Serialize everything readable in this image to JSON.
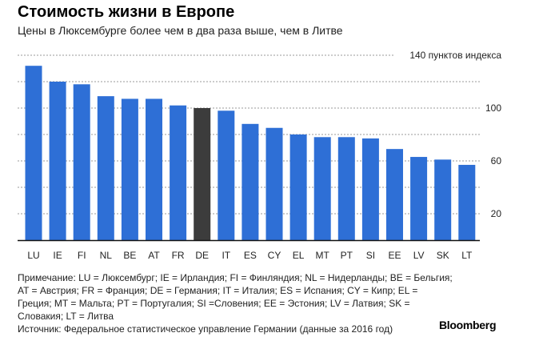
{
  "title": "Стоимость жизни в Европе",
  "subtitle": "Цены в Люксембурге более чем в два раза выше, чем в Литве",
  "chart_data": {
    "type": "bar",
    "title": "Стоимость жизни в Европе",
    "subtitle": "Цены в Люксембурге более чем в два раза выше, чем в Литве",
    "categories": [
      "LU",
      "IE",
      "FI",
      "NL",
      "BE",
      "AT",
      "FR",
      "DE",
      "IT",
      "ES",
      "CY",
      "EL",
      "MT",
      "PT",
      "SI",
      "EE",
      "LV",
      "SK",
      "LT"
    ],
    "values": [
      132,
      120,
      118,
      109,
      107,
      107,
      102,
      100,
      98,
      88,
      85,
      80,
      78,
      78,
      77,
      69,
      63,
      61,
      57
    ],
    "highlight": "DE",
    "colors": {
      "bar": "#2e6fd6",
      "highlight": "#3c3c3c",
      "grid": "#999999",
      "axis": "#111111"
    },
    "ylim": [
      0,
      140
    ],
    "yticks": [
      {
        "value": 140,
        "label": "140 пунктов индекса"
      },
      {
        "value": 100,
        "label": "100"
      },
      {
        "value": 60,
        "label": "60"
      },
      {
        "value": 20,
        "label": "20"
      }
    ],
    "gridlines": [
      20,
      40,
      60,
      80,
      100,
      120,
      140
    ],
    "xlabel": "",
    "ylabel": ""
  },
  "note": "Примечание: LU = Люксембург; IE = Ирландия; FI = Финляндия; NL = Нидерланды; BE = Бельгия; AT = Австрия; FR = Франция; DE = Германия; IT = Италия; ES = Испания; CY = Кипр; EL = Греция; MT = Мальта; PT = Португалия; SI =Словения; EE = Эстония; LV = Латвия; SK = Словакия; LT = Литва",
  "source": "Источник: Федеральное статистическое управление Германии (данные за 2016 год)",
  "brand": "Bloomberg"
}
